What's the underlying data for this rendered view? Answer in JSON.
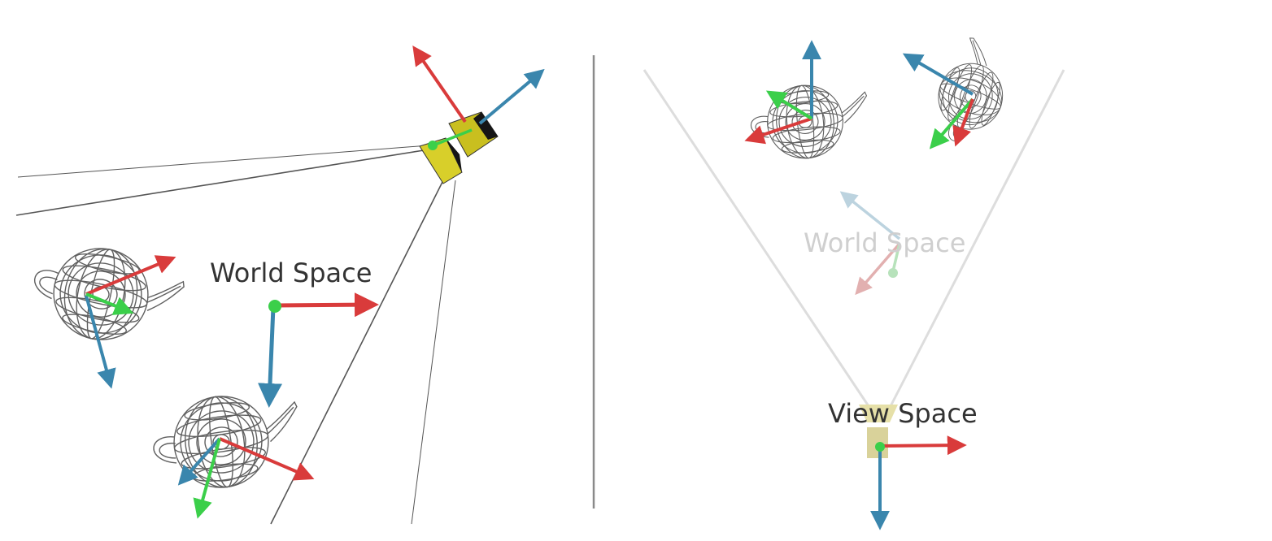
{
  "left_panel": {
    "label": "World Space"
  },
  "right_panel": {
    "label_faded": "World Space",
    "label": "View Space"
  },
  "colors": {
    "x_axis": "#d93b3b",
    "y_axis": "#3bcf4a",
    "z_axis": "#3a86ad",
    "camera_body": "#d8cf2a",
    "camera_shadow": "#151515",
    "wireframe": "#606060",
    "frustum_line": "#555555",
    "frustum_faded": "#dddddd",
    "divider": "#8a8a8a",
    "text": "#333333",
    "text_faded": "#cfcfcf"
  }
}
